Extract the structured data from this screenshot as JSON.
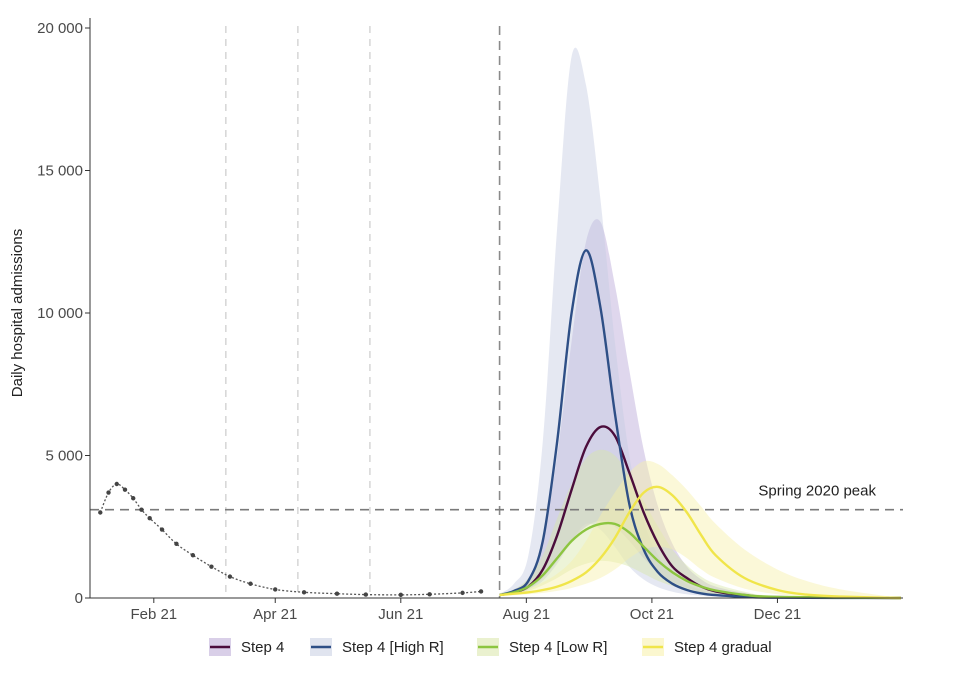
{
  "chart_data": {
    "type": "line",
    "ylabel": "Daily hospital admissions",
    "ylim": [
      0,
      20000
    ],
    "yticks": [
      0,
      5000,
      10000,
      15000,
      20000
    ],
    "ytick_labels": [
      "0",
      "5 000",
      "10 000",
      "15 000",
      "20 000"
    ],
    "xlim": [
      "2021-01-01",
      "2022-01-31"
    ],
    "xticks": [
      "2021-02-01",
      "2021-04-01",
      "2021-06-01",
      "2021-08-01",
      "2021-10-01",
      "2021-12-01"
    ],
    "xtick_labels": [
      "Feb 21",
      "Apr 21",
      "Jun 21",
      "Aug 21",
      "Oct 21",
      "Dec 21"
    ],
    "grid": false,
    "legend_position": "bottom",
    "vertical_markers": [
      "2021-03-08",
      "2021-04-12",
      "2021-05-17",
      "2021-07-19"
    ],
    "reference_line": {
      "label": "Spring 2020 peak",
      "value": 3100
    },
    "observed": {
      "x": [
        "2021-01-06",
        "2021-01-10",
        "2021-01-14",
        "2021-01-18",
        "2021-01-22",
        "2021-01-26",
        "2021-01-30",
        "2021-02-05",
        "2021-02-12",
        "2021-02-20",
        "2021-03-01",
        "2021-03-10",
        "2021-03-20",
        "2021-04-01",
        "2021-04-15",
        "2021-05-01",
        "2021-05-15",
        "2021-06-01",
        "2021-06-15",
        "2021-07-01",
        "2021-07-10"
      ],
      "y": [
        3000,
        3700,
        4000,
        3800,
        3500,
        3100,
        2800,
        2400,
        1900,
        1500,
        1100,
        750,
        500,
        300,
        200,
        150,
        120,
        110,
        130,
        180,
        230
      ]
    },
    "series": [
      {
        "name": "Step 4",
        "color": "#4b0d3c",
        "band_color": "#b9a7d6",
        "x": [
          "2021-07-19",
          "2021-07-26",
          "2021-08-02",
          "2021-08-09",
          "2021-08-16",
          "2021-08-23",
          "2021-08-30",
          "2021-09-06",
          "2021-09-13",
          "2021-09-20",
          "2021-09-27",
          "2021-10-04",
          "2021-10-11",
          "2021-10-18",
          "2021-10-25",
          "2021-11-01",
          "2021-11-15",
          "2021-12-01",
          "2022-01-30"
        ],
        "y": [
          100,
          200,
          400,
          1000,
          2200,
          3800,
          5300,
          6000,
          5700,
          4400,
          3000,
          1900,
          1100,
          700,
          400,
          230,
          100,
          30,
          0
        ],
        "lower": [
          100,
          150,
          300,
          700,
          1300,
          2000,
          2500,
          2700,
          2500,
          2000,
          1400,
          900,
          550,
          350,
          200,
          120,
          50,
          15,
          0
        ],
        "upper": [
          150,
          300,
          700,
          2000,
          5000,
          9000,
          12500,
          13200,
          11000,
          8000,
          5200,
          3200,
          1900,
          1100,
          650,
          400,
          180,
          60,
          0
        ]
      },
      {
        "name": "Step 4 [High R]",
        "color": "#2e4f86",
        "band_color": "#c6cde2",
        "x": [
          "2021-07-19",
          "2021-07-26",
          "2021-08-02",
          "2021-08-09",
          "2021-08-16",
          "2021-08-23",
          "2021-08-30",
          "2021-09-06",
          "2021-09-13",
          "2021-09-20",
          "2021-09-27",
          "2021-10-04",
          "2021-10-11",
          "2021-10-18",
          "2021-10-25",
          "2021-11-01",
          "2021-11-15",
          "2021-12-01",
          "2022-01-30"
        ],
        "y": [
          100,
          250,
          600,
          2000,
          5500,
          10000,
          12200,
          10200,
          6500,
          3300,
          1700,
          900,
          500,
          280,
          160,
          100,
          40,
          10,
          0
        ],
        "lower": [
          100,
          150,
          300,
          600,
          1200,
          2000,
          2600,
          2400,
          1800,
          1100,
          650,
          380,
          220,
          130,
          80,
          50,
          20,
          5,
          0
        ],
        "upper": [
          150,
          500,
          1500,
          5500,
          13000,
          19000,
          18000,
          14000,
          9000,
          5000,
          2700,
          1500,
          850,
          480,
          280,
          170,
          70,
          20,
          0
        ]
      },
      {
        "name": "Step 4 [Low R]",
        "color": "#8cc540",
        "band_color": "#d8e6a8",
        "x": [
          "2021-07-19",
          "2021-07-26",
          "2021-08-02",
          "2021-08-09",
          "2021-08-16",
          "2021-08-23",
          "2021-08-30",
          "2021-09-06",
          "2021-09-13",
          "2021-09-20",
          "2021-09-27",
          "2021-10-04",
          "2021-10-11",
          "2021-10-18",
          "2021-10-25",
          "2021-11-01",
          "2021-11-15",
          "2021-12-01",
          "2022-01-30"
        ],
        "y": [
          100,
          200,
          400,
          800,
          1400,
          2000,
          2400,
          2600,
          2600,
          2300,
          1800,
          1300,
          900,
          600,
          400,
          260,
          110,
          40,
          0
        ],
        "lower": [
          100,
          150,
          250,
          450,
          700,
          1000,
          1200,
          1300,
          1250,
          1100,
          850,
          600,
          420,
          280,
          180,
          120,
          50,
          20,
          0
        ],
        "upper": [
          150,
          300,
          700,
          1500,
          2800,
          4000,
          4900,
          5200,
          5000,
          4300,
          3400,
          2500,
          1700,
          1150,
          750,
          500,
          220,
          80,
          0
        ]
      },
      {
        "name": "Step 4 gradual",
        "color": "#f0e54a",
        "band_color": "#f7f0a8",
        "x": [
          "2021-07-19",
          "2021-07-26",
          "2021-08-02",
          "2021-08-09",
          "2021-08-16",
          "2021-08-23",
          "2021-08-30",
          "2021-09-06",
          "2021-09-13",
          "2021-09-20",
          "2021-09-27",
          "2021-10-04",
          "2021-10-11",
          "2021-10-18",
          "2021-10-25",
          "2021-11-01",
          "2021-11-15",
          "2021-12-01",
          "2021-12-15",
          "2022-01-01",
          "2022-01-30"
        ],
        "y": [
          100,
          150,
          200,
          280,
          400,
          600,
          900,
          1400,
          2100,
          3000,
          3700,
          3900,
          3600,
          3000,
          2200,
          1500,
          700,
          280,
          120,
          50,
          0
        ],
        "lower": [
          80,
          100,
          130,
          180,
          250,
          350,
          500,
          700,
          1000,
          1400,
          1700,
          1800,
          1700,
          1400,
          1000,
          700,
          330,
          130,
          60,
          25,
          0
        ],
        "upper": [
          150,
          250,
          350,
          550,
          850,
          1300,
          2000,
          2900,
          3700,
          4400,
          4800,
          4700,
          4300,
          3800,
          3200,
          2600,
          1700,
          1000,
          600,
          300,
          0
        ]
      }
    ]
  }
}
